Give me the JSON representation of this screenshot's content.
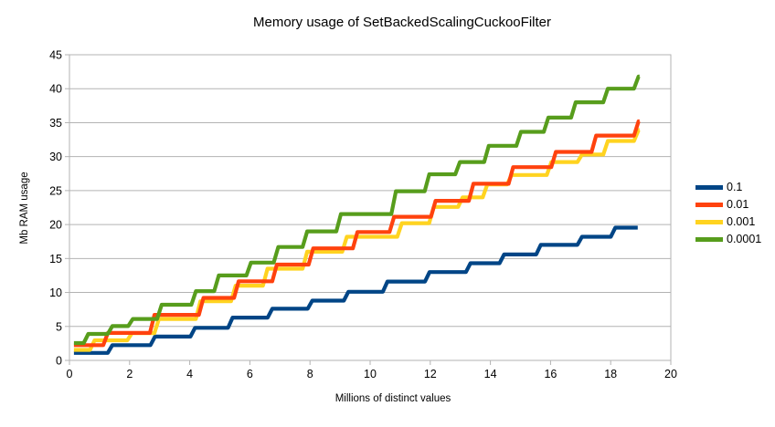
{
  "chart_data": {
    "type": "line",
    "line_style": "step",
    "title": "Memory usage of SetBackedScalingCuckooFilter",
    "xlabel": "Millions of distinct values",
    "ylabel": "Mb RAM usage",
    "xlim": [
      0,
      20
    ],
    "ylim": [
      0,
      45
    ],
    "x_ticks": [
      0,
      2,
      4,
      6,
      8,
      10,
      12,
      14,
      16,
      18,
      20
    ],
    "y_ticks": [
      0,
      5,
      10,
      15,
      20,
      25,
      30,
      35,
      40,
      45
    ],
    "grid": "horizontal",
    "legend_position": "right",
    "axis_color": "#b3b3b3",
    "text_color": "#000000",
    "background": "#ffffff",
    "series": [
      {
        "name": "0.1",
        "color": "#004586",
        "x_end": 18.9,
        "levels": [
          [
            0.15,
            1.1
          ],
          [
            1.35,
            2.25
          ],
          [
            2.77,
            3.5
          ],
          [
            4.1,
            4.8
          ],
          [
            5.35,
            6.3
          ],
          [
            6.67,
            7.6
          ],
          [
            8.0,
            8.8
          ],
          [
            9.2,
            10.1
          ],
          [
            10.5,
            11.6
          ],
          [
            11.9,
            13.0
          ],
          [
            13.26,
            14.3
          ],
          [
            14.38,
            15.6
          ],
          [
            15.6,
            17.0
          ],
          [
            16.97,
            18.2
          ],
          [
            18.08,
            19.55
          ]
        ]
      },
      {
        "name": "0.01",
        "color": "#ff420e",
        "x_end": 18.96,
        "levels": [
          [
            0.15,
            2.25
          ],
          [
            1.2,
            4.05
          ],
          [
            2.75,
            6.7
          ],
          [
            4.38,
            9.2
          ],
          [
            5.55,
            11.65
          ],
          [
            6.82,
            14.1
          ],
          [
            8.03,
            16.5
          ],
          [
            9.5,
            18.9
          ],
          [
            10.72,
            21.15
          ],
          [
            12.1,
            23.5
          ],
          [
            13.36,
            26.0
          ],
          [
            14.68,
            28.45
          ],
          [
            16.1,
            30.7
          ],
          [
            17.44,
            33.1
          ],
          [
            18.85,
            35.2
          ]
        ]
      },
      {
        "name": "0.001",
        "color": "#ffd320",
        "x_end": 18.96,
        "levels": [
          [
            0.15,
            1.55
          ],
          [
            0.76,
            2.96
          ],
          [
            2.0,
            4.0
          ],
          [
            2.9,
            6.1
          ],
          [
            4.28,
            8.7
          ],
          [
            5.45,
            11.0
          ],
          [
            6.51,
            13.5
          ],
          [
            7.83,
            16.0
          ],
          [
            9.15,
            18.2
          ],
          [
            10.98,
            20.2
          ],
          [
            12.04,
            22.6
          ],
          [
            13.0,
            24.0
          ],
          [
            13.82,
            25.9
          ],
          [
            14.63,
            27.3
          ],
          [
            15.95,
            29.2
          ],
          [
            16.97,
            30.3
          ],
          [
            17.83,
            32.3
          ],
          [
            18.85,
            33.9
          ]
        ]
      },
      {
        "name": "0.0001",
        "color": "#579d1c",
        "x_end": 18.96,
        "levels": [
          [
            0.15,
            2.55
          ],
          [
            0.55,
            3.9
          ],
          [
            1.35,
            5.05
          ],
          [
            2.03,
            6.1
          ],
          [
            2.99,
            8.2
          ],
          [
            4.13,
            10.2
          ],
          [
            4.89,
            12.5
          ],
          [
            5.96,
            14.4
          ],
          [
            6.87,
            16.7
          ],
          [
            7.83,
            19.0
          ],
          [
            8.95,
            21.55
          ],
          [
            10.78,
            24.9
          ],
          [
            11.89,
            27.4
          ],
          [
            12.91,
            29.2
          ],
          [
            13.87,
            31.6
          ],
          [
            14.94,
            33.65
          ],
          [
            15.85,
            35.75
          ],
          [
            16.76,
            38.0
          ],
          [
            17.83,
            40.0
          ],
          [
            18.85,
            41.8
          ]
        ]
      }
    ],
    "draw_order": [
      0,
      2,
      1,
      3
    ]
  }
}
